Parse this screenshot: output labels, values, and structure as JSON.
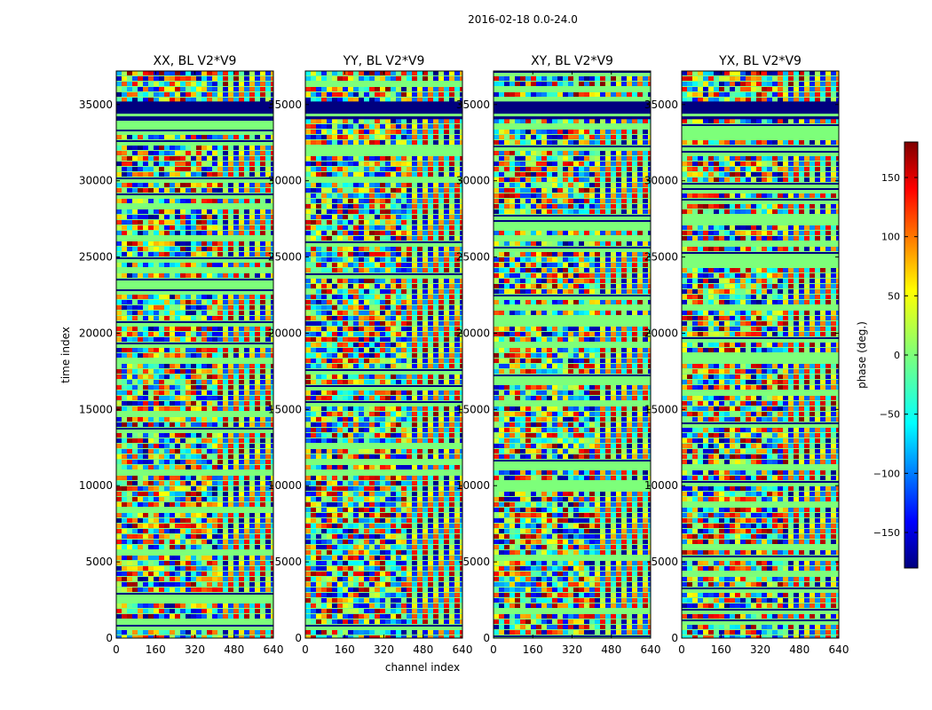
{
  "figure_title": "2016-02-18 0.0-24.0",
  "chart_data": {
    "type": "heatmap",
    "title": "2016-02-18 0.0-24.0",
    "xlabel": "channel index",
    "ylabel": "time index",
    "xlim": [
      0,
      640
    ],
    "ylim": [
      0,
      37200
    ],
    "x_ticks": [
      0,
      160,
      320,
      480,
      640
    ],
    "y_ticks": [
      0,
      5000,
      10000,
      15000,
      20000,
      25000,
      30000,
      35000
    ],
    "colormap": "jet",
    "panels": [
      {
        "title": "XX, BL V2*V9",
        "polarization": "XX",
        "baseline": "V2*V9"
      },
      {
        "title": "YY, BL V2*V9",
        "polarization": "YY",
        "baseline": "V2*V9"
      },
      {
        "title": "XY, BL V2*V9",
        "polarization": "XY",
        "baseline": "V2*V9"
      },
      {
        "title": "YX, BL V2*V9",
        "polarization": "YX",
        "baseline": "V2*V9"
      }
    ],
    "colorbar": {
      "label": "phase (deg.)",
      "range": [
        -180,
        180
      ],
      "ticks": [
        -150,
        -100,
        -50,
        0,
        50,
        100,
        150
      ]
    }
  }
}
